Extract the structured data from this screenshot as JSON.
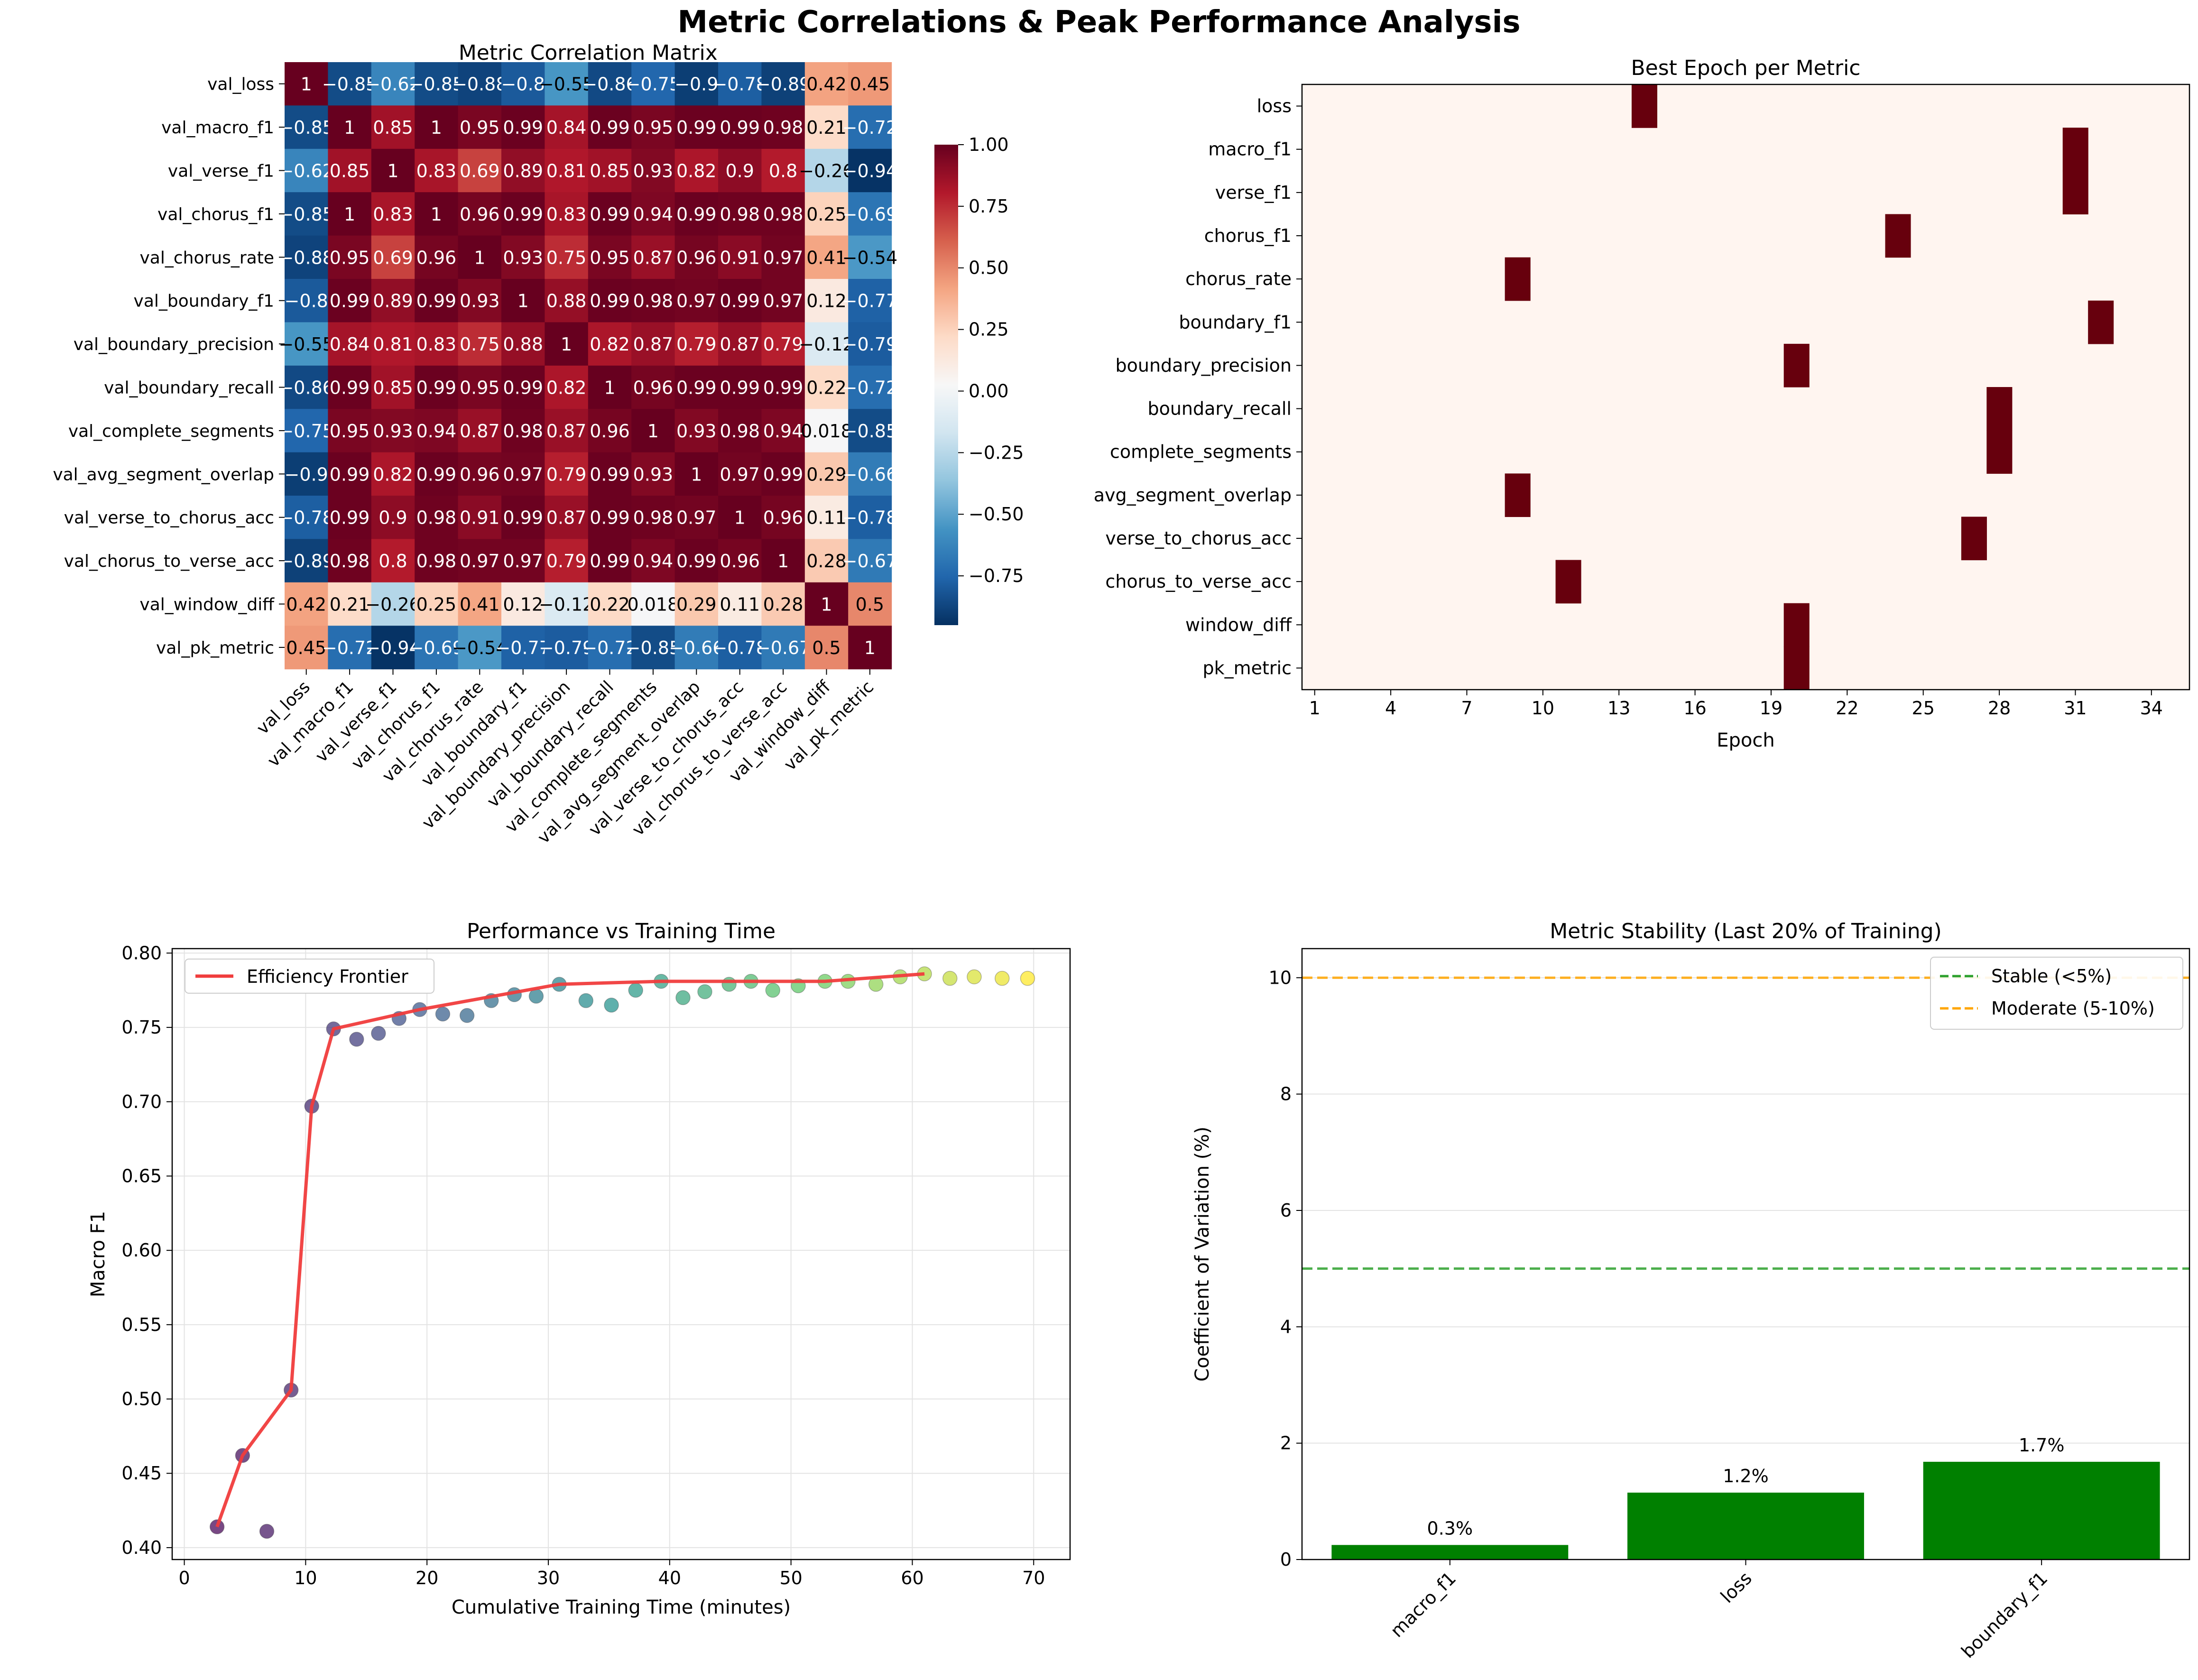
{
  "figure": {
    "title": "Metric Correlations & Peak Performance Analysis"
  },
  "colors": {
    "diverging": [
      "#053061",
      "#2166ac",
      "#4393c3",
      "#92c5de",
      "#d1e5f0",
      "#f7f7f7",
      "#fddbc7",
      "#f4a582",
      "#d6604d",
      "#b2182b",
      "#67001f"
    ],
    "heat_empty": "#fff5f0",
    "heat_best": "#67000d",
    "frontier": "#f03c3c",
    "stable": "#2ca02c",
    "moderate": "#ffa500",
    "bar": "#008000"
  },
  "chart_data": [
    {
      "id": "corr",
      "type": "heatmap",
      "title": "Metric Correlation Matrix",
      "labels": [
        "val_loss",
        "val_macro_f1",
        "val_verse_f1",
        "val_chorus_f1",
        "val_chorus_rate",
        "val_boundary_f1",
        "val_boundary_precision",
        "val_boundary_recall",
        "val_complete_segments",
        "val_avg_segment_overlap",
        "val_verse_to_chorus_acc",
        "val_chorus_to_verse_acc",
        "val_window_diff",
        "val_pk_metric"
      ],
      "matrix": [
        [
          1,
          -0.85,
          -0.62,
          -0.85,
          -0.88,
          -0.8,
          -0.55,
          -0.86,
          -0.75,
          -0.9,
          -0.78,
          -0.89,
          0.42,
          0.45
        ],
        [
          -0.85,
          1,
          0.85,
          1,
          0.95,
          0.99,
          0.84,
          0.99,
          0.95,
          0.99,
          0.99,
          0.98,
          0.21,
          -0.72
        ],
        [
          -0.62,
          0.85,
          1,
          0.83,
          0.69,
          0.89,
          0.81,
          0.85,
          0.93,
          0.82,
          0.9,
          0.8,
          -0.26,
          -0.94
        ],
        [
          -0.85,
          1,
          0.83,
          1,
          0.96,
          0.99,
          0.83,
          0.99,
          0.94,
          0.99,
          0.98,
          0.98,
          0.25,
          -0.69
        ],
        [
          -0.88,
          0.95,
          0.69,
          0.96,
          1,
          0.93,
          0.75,
          0.95,
          0.87,
          0.96,
          0.91,
          0.97,
          0.41,
          -0.54
        ],
        [
          -0.8,
          0.99,
          0.89,
          0.99,
          0.93,
          1,
          0.88,
          0.99,
          0.98,
          0.97,
          0.99,
          0.97,
          0.12,
          -0.77
        ],
        [
          -0.55,
          0.84,
          0.81,
          0.83,
          0.75,
          0.88,
          1,
          0.82,
          0.87,
          0.79,
          0.87,
          0.79,
          -0.12,
          -0.79
        ],
        [
          -0.86,
          0.99,
          0.85,
          0.99,
          0.95,
          0.99,
          0.82,
          1,
          0.96,
          0.99,
          0.99,
          0.99,
          0.22,
          -0.72
        ],
        [
          -0.75,
          0.95,
          0.93,
          0.94,
          0.87,
          0.98,
          0.87,
          0.96,
          1,
          0.93,
          0.98,
          0.94,
          0.018,
          -0.85
        ],
        [
          -0.9,
          0.99,
          0.82,
          0.99,
          0.96,
          0.97,
          0.79,
          0.99,
          0.93,
          1,
          0.97,
          0.99,
          0.29,
          -0.66
        ],
        [
          -0.78,
          0.99,
          0.9,
          0.98,
          0.91,
          0.99,
          0.87,
          0.99,
          0.98,
          0.97,
          1,
          0.96,
          0.11,
          -0.78
        ],
        [
          -0.89,
          0.98,
          0.8,
          0.98,
          0.97,
          0.97,
          0.79,
          0.99,
          0.94,
          0.99,
          0.96,
          1,
          0.28,
          -0.67
        ],
        [
          0.42,
          0.21,
          -0.26,
          0.25,
          0.41,
          0.12,
          -0.12,
          0.22,
          0.018,
          0.29,
          0.11,
          0.28,
          1,
          0.5
        ],
        [
          0.45,
          -0.72,
          -0.94,
          -0.69,
          -0.54,
          -0.77,
          -0.79,
          -0.72,
          -0.85,
          -0.66,
          -0.78,
          -0.67,
          0.5,
          1
        ]
      ],
      "vmin": -0.95,
      "vmax": 1.0,
      "colorbar_ticks": [
        1.0,
        0.75,
        0.5,
        0.25,
        0.0,
        -0.25,
        -0.5,
        -0.75
      ],
      "colorbar_tick_labels": [
        "1.00",
        "0.75",
        "0.50",
        "0.25",
        "0.00",
        "−0.25",
        "−0.50",
        "−0.75"
      ]
    },
    {
      "id": "best",
      "type": "heatmap",
      "title": "Best Epoch per Metric",
      "xlabel": "Epoch",
      "metrics": [
        "loss",
        "macro_f1",
        "verse_f1",
        "chorus_f1",
        "chorus_rate",
        "boundary_f1",
        "boundary_precision",
        "boundary_recall",
        "complete_segments",
        "avg_segment_overlap",
        "verse_to_chorus_acc",
        "chorus_to_verse_acc",
        "window_diff",
        "pk_metric"
      ],
      "best_epoch": [
        14,
        31,
        31,
        24,
        9,
        32,
        20,
        28,
        28,
        9,
        27,
        11,
        20,
        20
      ],
      "epoch_min": 1,
      "epoch_max": 35,
      "xticks": [
        1,
        4,
        7,
        10,
        13,
        16,
        19,
        22,
        25,
        28,
        31,
        34
      ]
    },
    {
      "id": "time",
      "type": "scatter",
      "title": "Performance vs Training Time",
      "xlabel": "Cumulative Training Time (minutes)",
      "ylabel": "Macro F1",
      "xlim": [
        -1,
        73
      ],
      "ylim": [
        0.392,
        0.803
      ],
      "xticks": [
        0,
        10,
        20,
        30,
        40,
        50,
        60,
        70
      ],
      "yticks": [
        0.4,
        0.45,
        0.5,
        0.55,
        0.6,
        0.65,
        0.7,
        0.75,
        0.8
      ],
      "ytick_labels": [
        "0.40",
        "0.45",
        "0.50",
        "0.55",
        "0.60",
        "0.65",
        "0.70",
        "0.75",
        "0.80"
      ],
      "points": [
        [
          2.7,
          0.414
        ],
        [
          4.8,
          0.462
        ],
        [
          6.8,
          0.411
        ],
        [
          8.8,
          0.506
        ],
        [
          10.5,
          0.697
        ],
        [
          12.3,
          0.749
        ],
        [
          14.2,
          0.742
        ],
        [
          16.0,
          0.746
        ],
        [
          17.7,
          0.756
        ],
        [
          19.4,
          0.762
        ],
        [
          21.3,
          0.759
        ],
        [
          23.3,
          0.758
        ],
        [
          25.3,
          0.768
        ],
        [
          27.2,
          0.772
        ],
        [
          29.0,
          0.771
        ],
        [
          30.9,
          0.779
        ],
        [
          33.1,
          0.768
        ],
        [
          35.2,
          0.765
        ],
        [
          37.2,
          0.775
        ],
        [
          39.3,
          0.781
        ],
        [
          41.1,
          0.77
        ],
        [
          42.9,
          0.774
        ],
        [
          44.9,
          0.779
        ],
        [
          46.7,
          0.781
        ],
        [
          48.5,
          0.775
        ],
        [
          50.6,
          0.778
        ],
        [
          52.8,
          0.781
        ],
        [
          54.7,
          0.781
        ],
        [
          57.0,
          0.779
        ],
        [
          59.0,
          0.784
        ],
        [
          61.0,
          0.786
        ],
        [
          63.1,
          0.783
        ],
        [
          65.1,
          0.784
        ],
        [
          67.4,
          0.783
        ],
        [
          69.5,
          0.783
        ]
      ],
      "frontier": [
        [
          2.7,
          0.414
        ],
        [
          4.8,
          0.462
        ],
        [
          8.8,
          0.506
        ],
        [
          10.5,
          0.697
        ],
        [
          12.3,
          0.749
        ],
        [
          19.4,
          0.762
        ],
        [
          30.9,
          0.779
        ],
        [
          39.3,
          0.781
        ],
        [
          52.8,
          0.781
        ],
        [
          61.0,
          0.786
        ]
      ],
      "legend": [
        "Efficiency Frontier"
      ],
      "grid": true
    },
    {
      "id": "stab",
      "type": "bar",
      "title": "Metric Stability (Last 20% of Training)",
      "ylabel": "Coefficient of Variation (%)",
      "categories": [
        "macro_f1",
        "loss",
        "boundary_f1"
      ],
      "values": [
        0.25,
        1.15,
        1.68
      ],
      "value_labels": [
        "0.3%",
        "1.2%",
        "1.7%"
      ],
      "ylim": [
        0,
        10.5
      ],
      "yticks": [
        0,
        2,
        4,
        6,
        8,
        10
      ],
      "thresholds": [
        {
          "name": "Stable (<5%)",
          "value": 5
        },
        {
          "name": "Moderate (5-10%)",
          "value": 10
        }
      ],
      "grid": true
    }
  ]
}
